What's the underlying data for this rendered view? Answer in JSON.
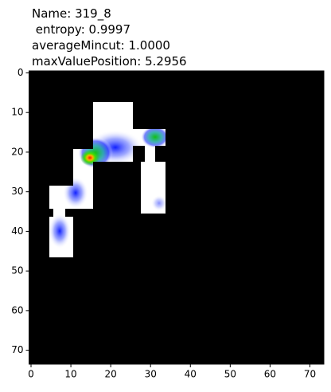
{
  "chart_data": {
    "type": "image",
    "title": [
      "Name: 319_8",
      " entropy: 0.9997",
      "averageMincut: 1.0000",
      "maxValuePosition: 5.2956"
    ],
    "xlim": [
      -0.5,
      73.5
    ],
    "ylim": [
      73.5,
      -0.5
    ],
    "xticks": [
      0,
      10,
      20,
      30,
      40,
      50,
      60,
      70
    ],
    "yticks": [
      0,
      10,
      20,
      30,
      40,
      50,
      60,
      70
    ]
  }
}
